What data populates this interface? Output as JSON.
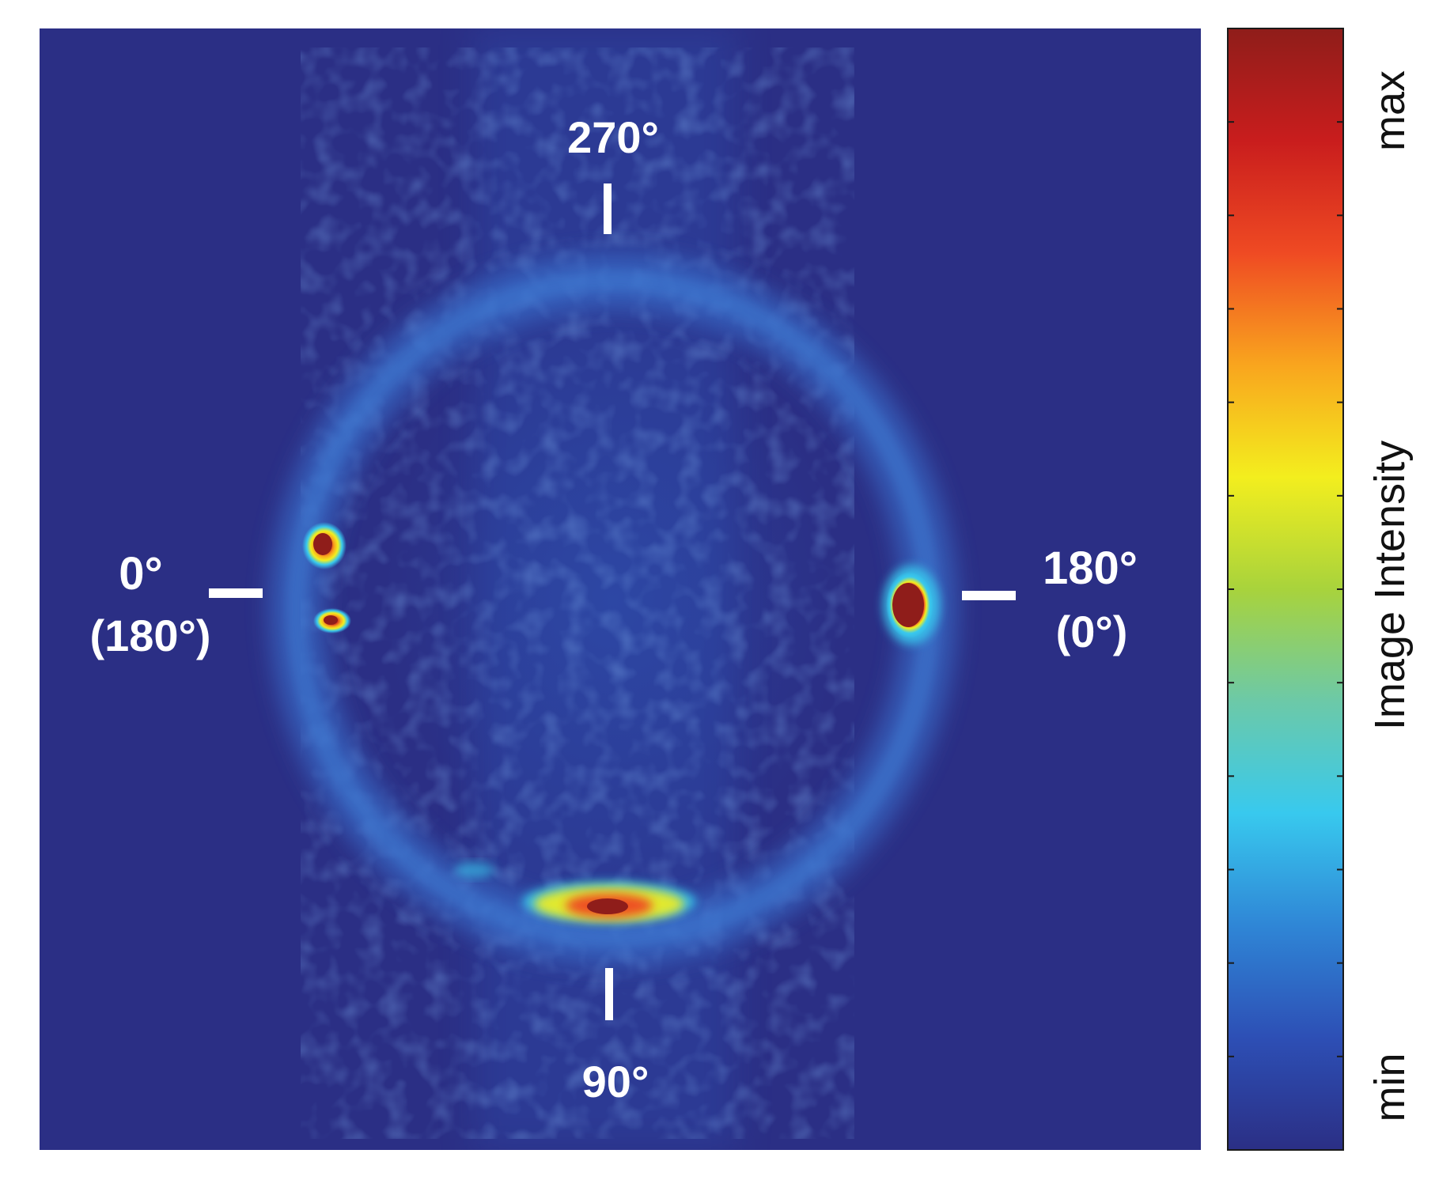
{
  "angle_labels": {
    "top": "270°",
    "bottom": "90°",
    "left": "0°",
    "left_alt": "(180°)",
    "right": "180°",
    "right_alt": "(0°)"
  },
  "colorbar": {
    "title": "Image Intensity",
    "max_label": "max",
    "min_label": "min",
    "colors": [
      "#2b2f85",
      "#2d4fb5",
      "#2f86d6",
      "#38c9ee",
      "#6cc9a8",
      "#a8d33c",
      "#f3ee1e",
      "#f9a51e",
      "#ef4a23",
      "#c91d1d",
      "#8f1d1a"
    ]
  },
  "image": {
    "background_color": "#2b2f85"
  }
}
